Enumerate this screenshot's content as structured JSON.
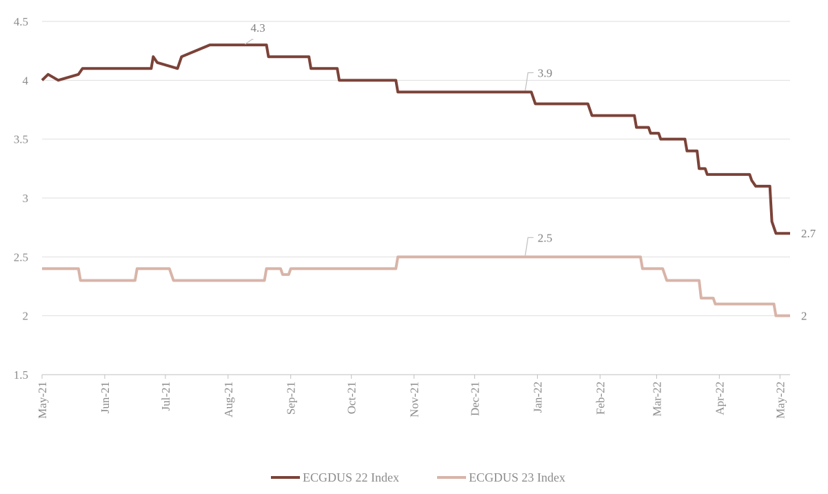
{
  "chart_data": {
    "type": "line",
    "title": "",
    "xlabel": "",
    "ylabel": "",
    "ylim": [
      1.5,
      4.5
    ],
    "yticks": [
      "1.5",
      "2",
      "2.5",
      "3",
      "3.5",
      "4",
      "4.5"
    ],
    "xlim": [
      "2021-05-01",
      "2022-05-06"
    ],
    "xticks": [
      {
        "date": "2021-05-01",
        "label": "May-21"
      },
      {
        "date": "2021-06-01",
        "label": "Jun-21"
      },
      {
        "date": "2021-07-01",
        "label": "Jul-21"
      },
      {
        "date": "2021-08-01",
        "label": "Aug-21"
      },
      {
        "date": "2021-09-01",
        "label": "Sep-21"
      },
      {
        "date": "2021-10-01",
        "label": "Oct-21"
      },
      {
        "date": "2021-11-01",
        "label": "Nov-21"
      },
      {
        "date": "2021-12-01",
        "label": "Dec-21"
      },
      {
        "date": "2022-01-01",
        "label": "Jan-22"
      },
      {
        "date": "2022-02-01",
        "label": "Feb-22"
      },
      {
        "date": "2022-03-01",
        "label": "Mar-22"
      },
      {
        "date": "2022-04-01",
        "label": "Apr-22"
      },
      {
        "date": "2022-05-01",
        "label": "May-22"
      }
    ],
    "grid": "horizontal",
    "legend": "bottom",
    "series": [
      {
        "name": "ECGDUS 22 Index",
        "color": "#7b4238",
        "points": [
          [
            "2021-05-01",
            4.0
          ],
          [
            "2021-05-04",
            4.05
          ],
          [
            "2021-05-09",
            4.0
          ],
          [
            "2021-05-19",
            4.05
          ],
          [
            "2021-05-21",
            4.1
          ],
          [
            "2021-06-24",
            4.1
          ],
          [
            "2021-06-25",
            4.2
          ],
          [
            "2021-06-27",
            4.15
          ],
          [
            "2021-07-07",
            4.1
          ],
          [
            "2021-07-09",
            4.2
          ],
          [
            "2021-07-23",
            4.3
          ],
          [
            "2021-08-20",
            4.3
          ],
          [
            "2021-08-21",
            4.2
          ],
          [
            "2021-09-10",
            4.2
          ],
          [
            "2021-09-11",
            4.1
          ],
          [
            "2021-09-24",
            4.1
          ],
          [
            "2021-09-25",
            4.0
          ],
          [
            "2021-10-23",
            4.0
          ],
          [
            "2021-10-24",
            3.9
          ],
          [
            "2021-12-29",
            3.9
          ],
          [
            "2021-12-31",
            3.8
          ],
          [
            "2022-01-26",
            3.8
          ],
          [
            "2022-01-28",
            3.7
          ],
          [
            "2022-02-18",
            3.7
          ],
          [
            "2022-02-19",
            3.6
          ],
          [
            "2022-02-25",
            3.6
          ],
          [
            "2022-02-26",
            3.55
          ],
          [
            "2022-03-02",
            3.55
          ],
          [
            "2022-03-03",
            3.5
          ],
          [
            "2022-03-15",
            3.5
          ],
          [
            "2022-03-16",
            3.4
          ],
          [
            "2022-03-21",
            3.4
          ],
          [
            "2022-03-22",
            3.25
          ],
          [
            "2022-03-25",
            3.25
          ],
          [
            "2022-03-26",
            3.2
          ],
          [
            "2022-04-16",
            3.2
          ],
          [
            "2022-04-17",
            3.15
          ],
          [
            "2022-04-19",
            3.1
          ],
          [
            "2022-04-26",
            3.1
          ],
          [
            "2022-04-27",
            2.8
          ],
          [
            "2022-04-29",
            2.7
          ],
          [
            "2022-05-06",
            2.7
          ]
        ]
      },
      {
        "name": "ECGDUS 23 Index",
        "color": "#d8b4a8",
        "points": [
          [
            "2021-05-01",
            2.4
          ],
          [
            "2021-05-19",
            2.4
          ],
          [
            "2021-05-20",
            2.3
          ],
          [
            "2021-06-16",
            2.3
          ],
          [
            "2021-06-17",
            2.4
          ],
          [
            "2021-07-03",
            2.4
          ],
          [
            "2021-07-05",
            2.3
          ],
          [
            "2021-08-19",
            2.3
          ],
          [
            "2021-08-20",
            2.4
          ],
          [
            "2021-08-27",
            2.4
          ],
          [
            "2021-08-28",
            2.35
          ],
          [
            "2021-08-31",
            2.35
          ],
          [
            "2021-09-01",
            2.4
          ],
          [
            "2021-10-23",
            2.4
          ],
          [
            "2021-10-24",
            2.5
          ],
          [
            "2022-02-21",
            2.5
          ],
          [
            "2022-02-22",
            2.4
          ],
          [
            "2022-03-04",
            2.4
          ],
          [
            "2022-03-06",
            2.3
          ],
          [
            "2022-03-22",
            2.3
          ],
          [
            "2022-03-23",
            2.15
          ],
          [
            "2022-03-29",
            2.15
          ],
          [
            "2022-03-30",
            2.1
          ],
          [
            "2022-04-28",
            2.1
          ],
          [
            "2022-04-29",
            2.0
          ],
          [
            "2022-05-06",
            2.0
          ]
        ]
      }
    ],
    "annotations": [
      {
        "series": 0,
        "date": "2021-08-06",
        "value": 4.3,
        "text": "4.3",
        "leader": true,
        "side": "above"
      },
      {
        "series": 0,
        "date": "2021-12-26",
        "value": 3.9,
        "text": "3.9",
        "leader": true,
        "side": "above-right"
      },
      {
        "series": 1,
        "date": "2021-12-26",
        "value": 2.5,
        "text": "2.5",
        "leader": true,
        "side": "above-right"
      },
      {
        "series": 0,
        "date": "2022-05-06",
        "value": 2.7,
        "text": "2.7",
        "leader": false,
        "side": "right"
      },
      {
        "series": 1,
        "date": "2022-05-06",
        "value": 2.0,
        "text": "2",
        "leader": false,
        "side": "right"
      }
    ]
  }
}
